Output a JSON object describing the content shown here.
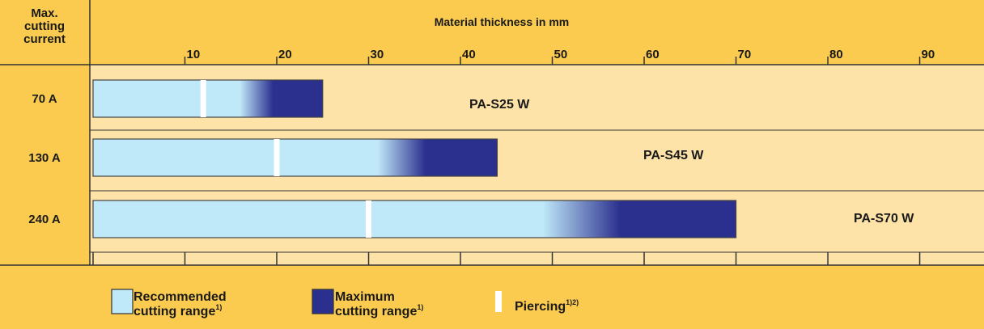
{
  "chart_data": {
    "type": "range_bar",
    "title": "Material thickness in mm",
    "y_axis_label": [
      "Max.",
      "cutting",
      "current"
    ],
    "categories": [
      "70 A",
      "130 A",
      "240 A"
    ],
    "products": [
      "PA-S25 W",
      "PA-S45 W",
      "PA-S70 W"
    ],
    "series": [
      {
        "name": [
          "Recommended",
          "cutting range"
        ],
        "footnote": "1)",
        "color": "#bfe8f8",
        "values": [
          16,
          31,
          49
        ]
      },
      {
        "name": [
          "Maximum",
          "cutting range"
        ],
        "footnote": "1)",
        "color": "#2b2f8e",
        "values": [
          25,
          44,
          70
        ]
      },
      {
        "name": [
          "Piercing"
        ],
        "footnote": "1)2)",
        "color": "#ffffff",
        "values": [
          12,
          20,
          30
        ]
      }
    ],
    "xlim": [
      0,
      97
    ],
    "xticks": [
      10,
      20,
      30,
      40,
      50,
      60,
      70,
      80,
      90
    ]
  }
}
